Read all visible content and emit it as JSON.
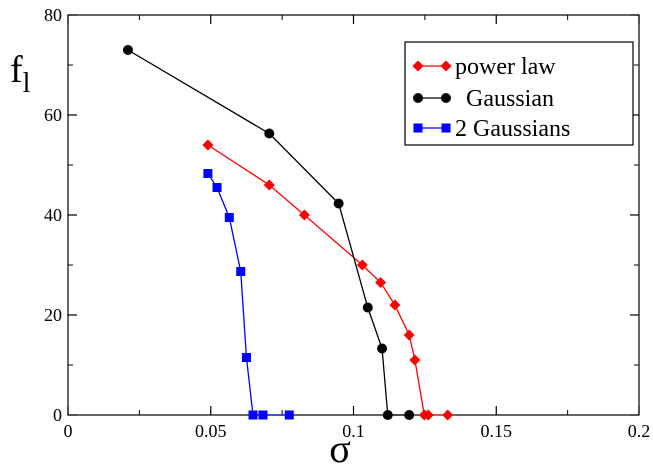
{
  "chart_data": {
    "type": "line",
    "title": "",
    "xlabel": "σ",
    "ylabel_main": "f",
    "ylabel_sub": "l",
    "xlim": [
      0,
      0.2
    ],
    "ylim": [
      0,
      80
    ],
    "x_ticks": [
      0,
      0.05,
      0.1,
      0.15,
      0.2
    ],
    "x_tick_labels": [
      "0",
      "0.05",
      "0.1",
      "0.15",
      "0.2"
    ],
    "y_ticks": [
      0,
      20,
      40,
      60,
      80
    ],
    "y_tick_labels": [
      "0",
      "20",
      "40",
      "60",
      "80"
    ],
    "grid": false,
    "legend_position": "top-right",
    "series": [
      {
        "name": "power law",
        "color": "#ff0000",
        "marker": "diamond",
        "x": [
          0.049,
          0.0705,
          0.0828,
          0.1031,
          0.1095,
          0.1145,
          0.1195,
          0.1215,
          0.1248,
          0.1262,
          0.133
        ],
        "y": [
          54,
          46,
          40,
          30,
          26.5,
          22,
          16,
          11,
          0,
          0,
          0
        ]
      },
      {
        "name": "Gaussian",
        "color": "#000000",
        "marker": "circle",
        "x": [
          0.021,
          0.0705,
          0.0948,
          0.105,
          0.11,
          0.112,
          0.1195
        ],
        "y": [
          73,
          56.3,
          42.3,
          21.5,
          13.3,
          0,
          0
        ]
      },
      {
        "name": "2 Gaussians",
        "color": "#0000ff",
        "marker": "square",
        "x": [
          0.049,
          0.0522,
          0.0565,
          0.0605,
          0.0625,
          0.0648,
          0.0683,
          0.0775
        ],
        "y": [
          48.3,
          45.5,
          39.5,
          28.7,
          11.5,
          0,
          0,
          0
        ]
      }
    ]
  }
}
